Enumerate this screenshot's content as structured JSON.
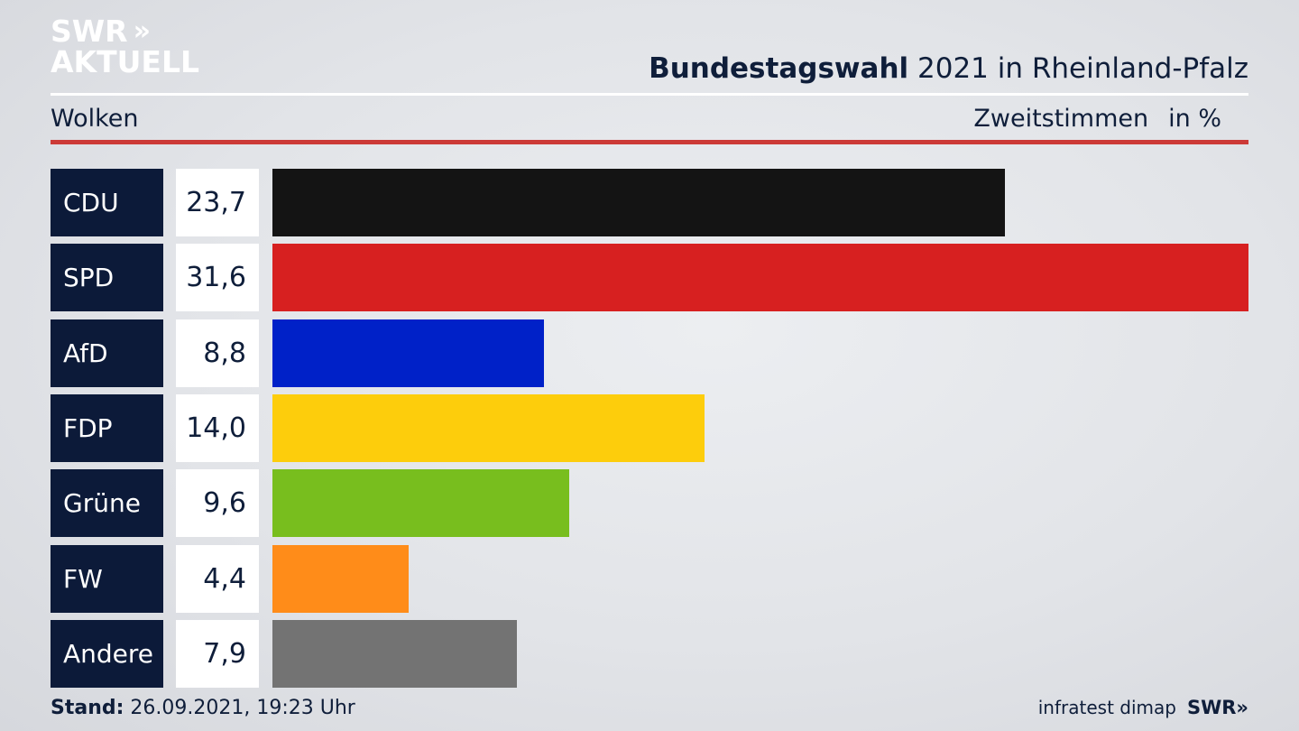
{
  "logo": {
    "line1": "SWR",
    "chevrons": "»",
    "line2": "AKTUELL"
  },
  "header": {
    "title_bold": "Bundestagswahl",
    "title_rest": " 2021 in Rheinland-Pfalz",
    "subtitle": "Wolken",
    "measure": "Zweitstimmen",
    "unit": "in %"
  },
  "chart_data": {
    "type": "bar",
    "orientation": "horizontal",
    "categories": [
      "CDU",
      "SPD",
      "AfD",
      "FDP",
      "Grüne",
      "FW",
      "Andere"
    ],
    "values": [
      23.7,
      31.6,
      8.8,
      14.0,
      9.6,
      4.4,
      7.9
    ],
    "value_labels": [
      "23,7",
      "31,6",
      "8,8",
      "14,0",
      "9,6",
      "4,4",
      "7,9"
    ],
    "colors": [
      "#141414",
      "#d72020",
      "#0021c8",
      "#fdcd0c",
      "#78be1e",
      "#ff8c19",
      "#737373"
    ],
    "title": "Bundestagswahl 2021 in Rheinland-Pfalz",
    "subtitle": "Wolken",
    "xlabel": "Zweitstimmen in %",
    "grid": false
  },
  "footer": {
    "stand_label": "Stand:",
    "stand_value": " 26.09.2021, 19:23 Uhr",
    "source": "infratest dimap",
    "brand": "SWR",
    "brand_chevrons": "»"
  }
}
